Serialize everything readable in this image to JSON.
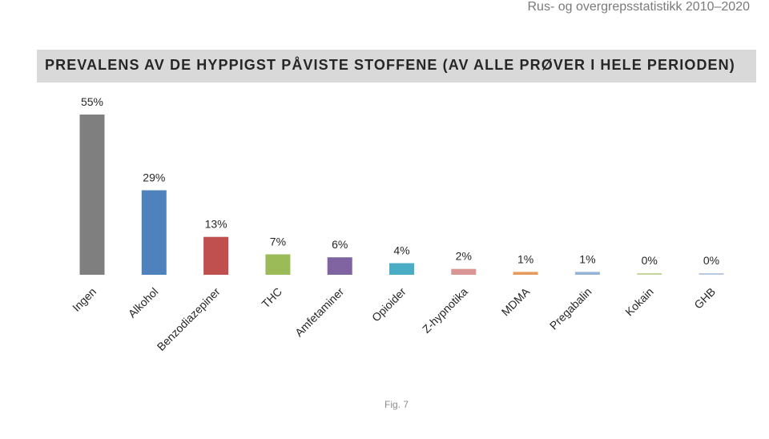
{
  "header": {
    "caption": "Rus- og overgrepsstatistikk 2010–2020"
  },
  "chart_data": {
    "type": "bar",
    "title": "PREVALENS AV DE HYPPIGST PÅVISTE STOFFENE (AV ALLE PRØVER I HELE PERIODEN)",
    "categories": [
      "Ingen",
      "Alkohol",
      "Benzodiazepiner",
      "THC",
      "Amfetaminer",
      "Opioider",
      "Z-hypnotika",
      "MDMA",
      "Pregabalin",
      "Kokain",
      "GHB"
    ],
    "values": [
      55,
      29,
      13,
      7,
      6,
      4,
      2,
      1,
      1,
      0,
      0
    ],
    "labels": [
      "55%",
      "29%",
      "13%",
      "7%",
      "6%",
      "4%",
      "2%",
      "1%",
      "1%",
      "0%",
      "0%"
    ],
    "colors": [
      "#7f7f7f",
      "#4f81bd",
      "#c0504d",
      "#9bbb59",
      "#8064a2",
      "#4bacc6",
      "#d99694",
      "#e69a5c",
      "#95b3d7",
      "#c4d79b",
      "#b7cce4"
    ],
    "xlabel": "",
    "ylabel": "",
    "ylim": [
      0,
      55
    ],
    "grid": false,
    "legend": "none"
  },
  "footer": {
    "fig_label": "Fig. 7"
  }
}
